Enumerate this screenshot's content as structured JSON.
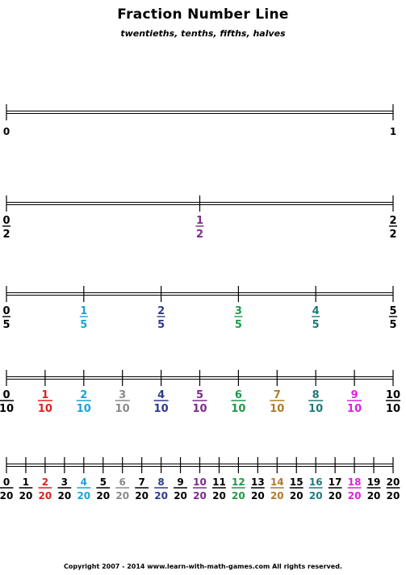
{
  "title": "Fraction Number Line",
  "subtitle": "twentieths, tenths, fifths, halves",
  "footer": "Copyright  2007 - 2014  www.learn-with-math-games.com  All rights reserved.",
  "number_lines": [
    {
      "name": "wholes",
      "labels": [
        {
          "type": "whole",
          "text": "0",
          "color": "#000000"
        },
        {
          "type": "whole",
          "text": "1",
          "color": "#000000"
        }
      ]
    },
    {
      "name": "halves",
      "labels": [
        {
          "type": "fraction",
          "num": "0",
          "den": "2",
          "color": "#000000"
        },
        {
          "type": "fraction",
          "num": "1",
          "den": "2",
          "color": "#7b2d8b"
        },
        {
          "type": "fraction",
          "num": "2",
          "den": "2",
          "color": "#000000"
        }
      ]
    },
    {
      "name": "fifths",
      "labels": [
        {
          "type": "fraction",
          "num": "0",
          "den": "5",
          "color": "#000000"
        },
        {
          "type": "fraction",
          "num": "1",
          "den": "5",
          "color": "#1aa3d9"
        },
        {
          "type": "fraction",
          "num": "2",
          "den": "5",
          "color": "#2e3a8c"
        },
        {
          "type": "fraction",
          "num": "3",
          "den": "5",
          "color": "#1f9a4a"
        },
        {
          "type": "fraction",
          "num": "4",
          "den": "5",
          "color": "#1f7a7a"
        },
        {
          "type": "fraction",
          "num": "5",
          "den": "5",
          "color": "#000000"
        }
      ]
    },
    {
      "name": "tenths",
      "labels": [
        {
          "type": "fraction",
          "num": "0",
          "den": "10",
          "color": "#000000"
        },
        {
          "type": "fraction",
          "num": "1",
          "den": "10",
          "color": "#e02020"
        },
        {
          "type": "fraction",
          "num": "2",
          "den": "10",
          "color": "#1aa3d9"
        },
        {
          "type": "fraction",
          "num": "3",
          "den": "10",
          "color": "#8a8a8a"
        },
        {
          "type": "fraction",
          "num": "4",
          "den": "10",
          "color": "#2e3a8c"
        },
        {
          "type": "fraction",
          "num": "5",
          "den": "10",
          "color": "#7b2d8b"
        },
        {
          "type": "fraction",
          "num": "6",
          "den": "10",
          "color": "#1f9a4a"
        },
        {
          "type": "fraction",
          "num": "7",
          "den": "10",
          "color": "#b07a2a"
        },
        {
          "type": "fraction",
          "num": "8",
          "den": "10",
          "color": "#1f7a7a"
        },
        {
          "type": "fraction",
          "num": "9",
          "den": "10",
          "color": "#e020e0"
        },
        {
          "type": "fraction",
          "num": "10",
          "den": "10",
          "color": "#000000"
        }
      ]
    },
    {
      "name": "twentieths",
      "labels": [
        {
          "type": "fraction",
          "num": "0",
          "den": "20",
          "color": "#000000"
        },
        {
          "type": "fraction",
          "num": "1",
          "den": "20",
          "color": "#000000"
        },
        {
          "type": "fraction",
          "num": "2",
          "den": "20",
          "color": "#e02020"
        },
        {
          "type": "fraction",
          "num": "3",
          "den": "20",
          "color": "#000000"
        },
        {
          "type": "fraction",
          "num": "4",
          "den": "20",
          "color": "#1aa3d9"
        },
        {
          "type": "fraction",
          "num": "5",
          "den": "20",
          "color": "#000000"
        },
        {
          "type": "fraction",
          "num": "6",
          "den": "20",
          "color": "#8a8a8a"
        },
        {
          "type": "fraction",
          "num": "7",
          "den": "20",
          "color": "#000000"
        },
        {
          "type": "fraction",
          "num": "8",
          "den": "20",
          "color": "#2e3a8c"
        },
        {
          "type": "fraction",
          "num": "9",
          "den": "20",
          "color": "#000000"
        },
        {
          "type": "fraction",
          "num": "10",
          "den": "20",
          "color": "#7b2d8b"
        },
        {
          "type": "fraction",
          "num": "11",
          "den": "20",
          "color": "#000000"
        },
        {
          "type": "fraction",
          "num": "12",
          "den": "20",
          "color": "#1f9a4a"
        },
        {
          "type": "fraction",
          "num": "13",
          "den": "20",
          "color": "#000000"
        },
        {
          "type": "fraction",
          "num": "14",
          "den": "20",
          "color": "#b07a2a"
        },
        {
          "type": "fraction",
          "num": "15",
          "den": "20",
          "color": "#000000"
        },
        {
          "type": "fraction",
          "num": "16",
          "den": "20",
          "color": "#1f7a7a"
        },
        {
          "type": "fraction",
          "num": "17",
          "den": "20",
          "color": "#000000"
        },
        {
          "type": "fraction",
          "num": "18",
          "den": "20",
          "color": "#e020e0"
        },
        {
          "type": "fraction",
          "num": "19",
          "den": "20",
          "color": "#000000"
        },
        {
          "type": "fraction",
          "num": "20",
          "den": "20",
          "color": "#000000"
        }
      ]
    }
  ]
}
